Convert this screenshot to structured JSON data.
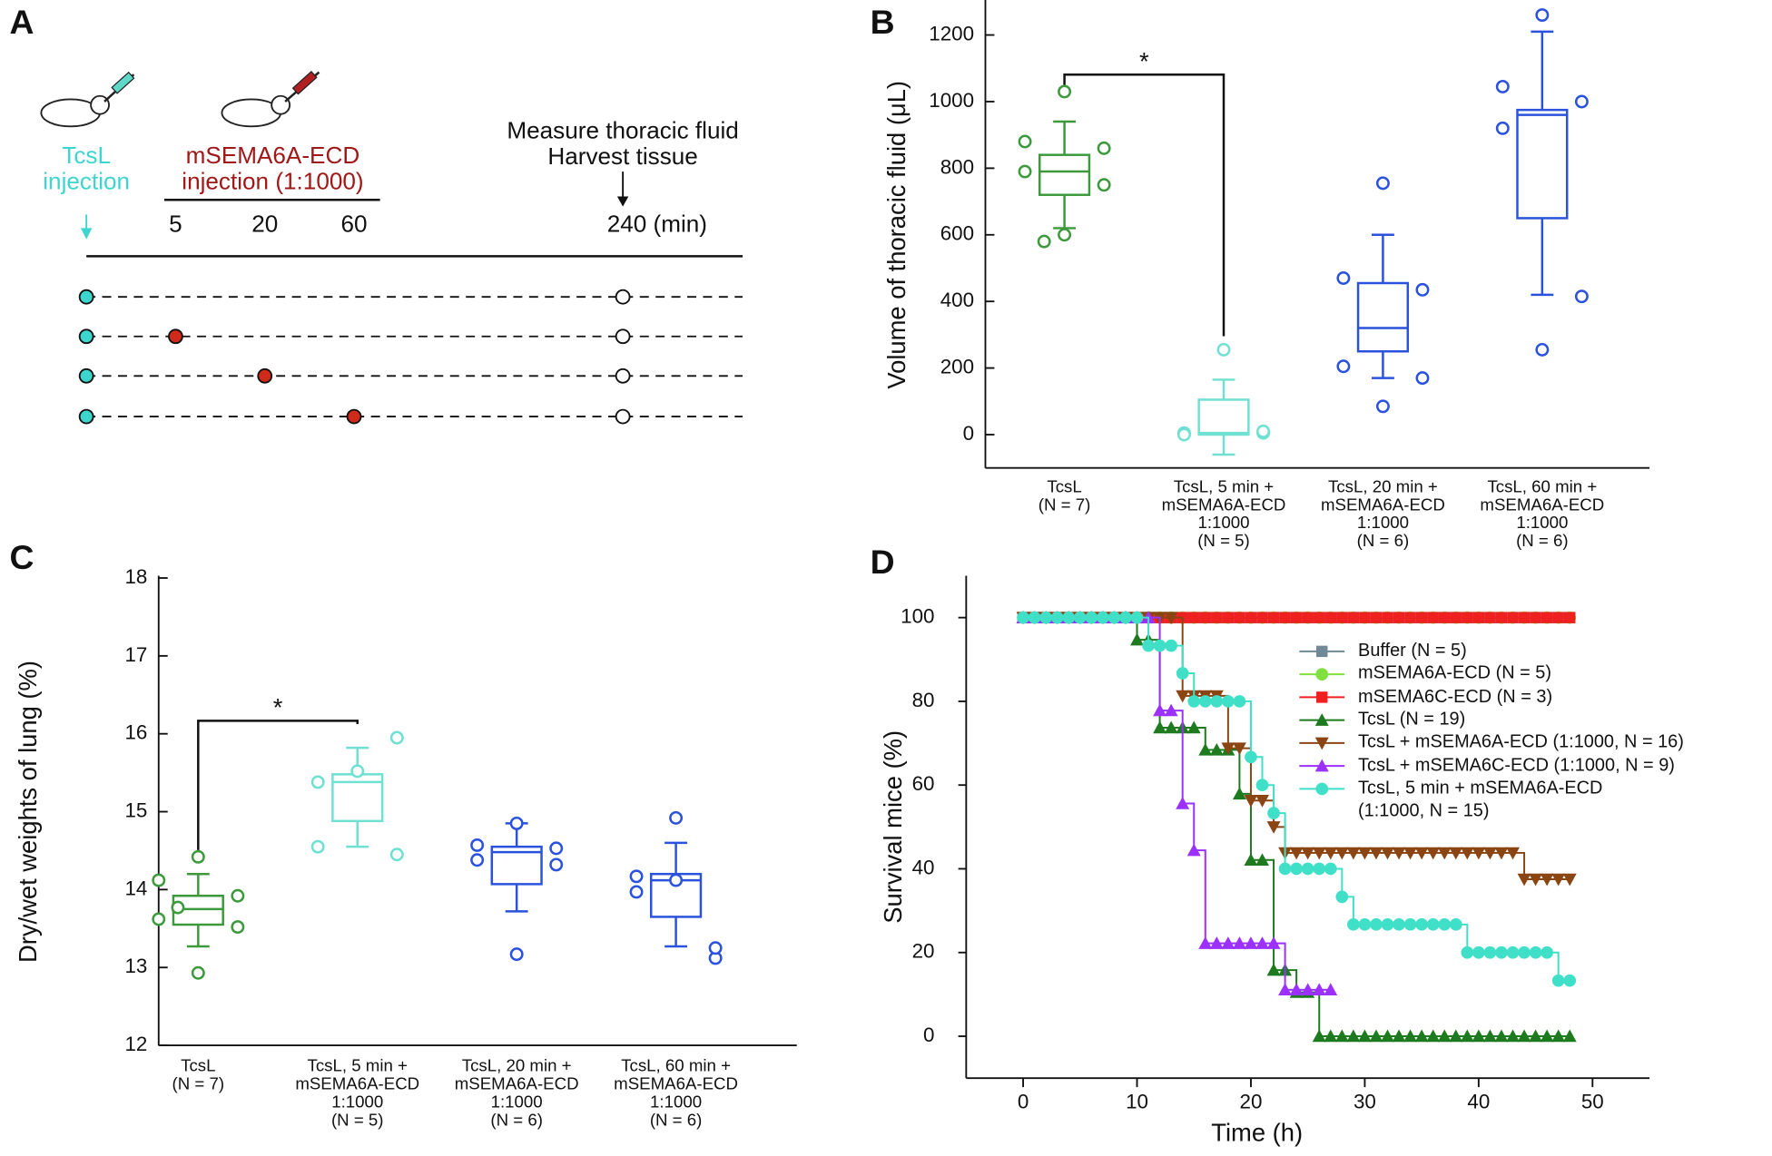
{
  "timeline": {
    "label": "A",
    "first_injection": [
      "TcsL",
      "injection"
    ],
    "second_injection": [
      "mSEMA6A-ECD",
      "injection (1:1000)"
    ],
    "endpoint": [
      "Measure thoracic fluid",
      "Harvest tissue"
    ],
    "ticks": [
      "5",
      "20",
      "60",
      "240 (min)"
    ]
  },
  "chart_data": [
    {
      "type": "box",
      "label": "B",
      "ylabel": "Volume of thoracic fluid (μL)",
      "ylim": [
        -100,
        1300
      ],
      "yticks": [
        0,
        200,
        400,
        600,
        800,
        1000,
        1200
      ],
      "categories": [
        [
          "TcsL",
          "(N = 7)"
        ],
        [
          "TcsL, 5 min +",
          "mSEMA6A-ECD",
          "1:1000",
          "(N = 5)"
        ],
        [
          "TcsL, 20 min +",
          "mSEMA6A-ECD",
          "1:1000",
          "(N = 6)"
        ],
        [
          "TcsL, 60 min +",
          "mSEMA6A-ECD",
          "1:1000",
          "(N = 6)"
        ]
      ],
      "colors": [
        "#3c9a3c",
        "#6fe0d2",
        "#2b52dc",
        "#2b52dc"
      ],
      "boxes": [
        {
          "whisker_low": 620,
          "q1": 720,
          "median": 790,
          "q3": 840,
          "whisker_high": 940,
          "points": [
            1030,
            880,
            860,
            790,
            750,
            600,
            580
          ]
        },
        {
          "whisker_low": -60,
          "q1": 0,
          "median": 5,
          "q3": 105,
          "whisker_high": 165,
          "points": [
            255,
            5,
            5,
            0,
            10
          ]
        },
        {
          "whisker_low": 170,
          "q1": 250,
          "median": 320,
          "q3": 455,
          "whisker_high": 600,
          "points": [
            755,
            470,
            435,
            205,
            170,
            85
          ]
        },
        {
          "whisker_low": 420,
          "q1": 650,
          "median": 960,
          "q3": 975,
          "whisker_high": 1210,
          "points": [
            1260,
            1045,
            1000,
            920,
            415,
            255
          ]
        }
      ],
      "significance": "*"
    },
    {
      "type": "box",
      "label": "C",
      "ylabel": "Dry/wet weights of lung (%)",
      "ylim": [
        12,
        18
      ],
      "yticks": [
        12,
        13,
        14,
        15,
        16,
        17,
        18
      ],
      "categories": [
        [
          "TcsL",
          "(N = 7)"
        ],
        [
          "TcsL, 5 min +",
          "mSEMA6A-ECD",
          "1:1000",
          "(N = 5)"
        ],
        [
          "TcsL, 20 min +",
          "mSEMA6A-ECD",
          "1:1000",
          "(N = 6)"
        ],
        [
          "TcsL, 60 min +",
          "mSEMA6A-ECD",
          "1:1000",
          "(N = 6)"
        ]
      ],
      "colors": [
        "#3c9a3c",
        "#6fe0d2",
        "#2b52dc",
        "#2b52dc"
      ],
      "boxes": [
        {
          "whisker_low": 13.27,
          "q1": 13.55,
          "median": 13.75,
          "q3": 13.92,
          "whisker_high": 14.2,
          "points": [
            14.42,
            13.62,
            13.52,
            14.12,
            13.92,
            12.93,
            13.77
          ]
        },
        {
          "whisker_low": 14.55,
          "q1": 14.88,
          "median": 15.38,
          "q3": 15.48,
          "whisker_high": 15.82,
          "points": [
            15.52,
            15.38,
            15.95,
            14.55,
            14.45
          ]
        },
        {
          "whisker_low": 13.72,
          "q1": 14.07,
          "median": 14.48,
          "q3": 14.55,
          "whisker_high": 14.85,
          "points": [
            14.85,
            14.57,
            14.53,
            14.38,
            14.32,
            13.17
          ]
        },
        {
          "whisker_low": 13.27,
          "q1": 13.65,
          "median": 14.12,
          "q3": 14.2,
          "whisker_high": 14.6,
          "points": [
            14.92,
            14.17,
            13.12,
            13.97,
            13.25,
            14.12
          ]
        }
      ],
      "significance": "*"
    },
    {
      "type": "step",
      "label": "D",
      "xlabel": "Time (h)",
      "ylabel": "Survival mice (%)",
      "xlim": [
        -5,
        55
      ],
      "ylim": [
        -10,
        110
      ],
      "xticks": [
        0,
        10,
        20,
        30,
        40,
        50
      ],
      "yticks": [
        0,
        20,
        40,
        60,
        80,
        100
      ],
      "x": [
        0,
        1,
        2,
        3,
        4,
        5,
        6,
        7,
        8,
        9,
        10,
        11,
        12,
        13,
        14,
        15,
        16,
        17,
        18,
        19,
        20,
        21,
        22,
        23,
        24,
        25,
        26,
        27,
        28,
        29,
        30,
        31,
        32,
        33,
        34,
        35,
        36,
        37,
        38,
        39,
        40,
        41,
        42,
        43,
        44,
        45,
        46,
        47,
        48
      ],
      "series": [
        {
          "name": "Buffer (N = 5)",
          "color": "#6f8a96",
          "marker": "square",
          "values": [
            100,
            100,
            100,
            100,
            100,
            100,
            100,
            100,
            100,
            100,
            100,
            100,
            100,
            100,
            100,
            100,
            100,
            100,
            100,
            100,
            100,
            100,
            100,
            100,
            100,
            100,
            100,
            100,
            100,
            100,
            100,
            100,
            100,
            100,
            100,
            100,
            100,
            100,
            100,
            100,
            100,
            100,
            100,
            100,
            100,
            100,
            100,
            100,
            100
          ]
        },
        {
          "name": "mSEMA6A-ECD (N = 5)",
          "color": "#80e040",
          "marker": "circle",
          "values": [
            100,
            100,
            100,
            100,
            100,
            100,
            100,
            100,
            100,
            100,
            100,
            100,
            100,
            100,
            100,
            100,
            100,
            100,
            100,
            100,
            100,
            100,
            100,
            100,
            100,
            100,
            100,
            100,
            100,
            100,
            100,
            100,
            100,
            100,
            100,
            100,
            100,
            100,
            100,
            100,
            100,
            100,
            100,
            100,
            100,
            100,
            100,
            100,
            100
          ]
        },
        {
          "name": "mSEMA6C-ECD  (N = 3)",
          "color": "#ee2020",
          "marker": "square",
          "values": [
            100,
            100,
            100,
            100,
            100,
            100,
            100,
            100,
            100,
            100,
            100,
            100,
            100,
            100,
            100,
            100,
            100,
            100,
            100,
            100,
            100,
            100,
            100,
            100,
            100,
            100,
            100,
            100,
            100,
            100,
            100,
            100,
            100,
            100,
            100,
            100,
            100,
            100,
            100,
            100,
            100,
            100,
            100,
            100,
            100,
            100,
            100,
            100,
            100
          ]
        },
        {
          "name": "TcsL (N = 19)",
          "color": "#1e7a1e",
          "marker": "tri-up",
          "values": [
            100,
            100,
            100,
            100,
            100,
            100,
            100,
            100,
            100,
            100,
            94.7,
            94.7,
            73.7,
            73.7,
            73.7,
            73.7,
            68.4,
            68.4,
            68.4,
            57.9,
            42.1,
            42.1,
            15.8,
            15.8,
            10.5,
            10.5,
            0,
            0,
            0,
            0,
            0,
            0,
            0,
            0,
            0,
            0,
            0,
            0,
            0,
            0,
            0,
            0,
            0,
            0,
            0,
            0,
            0,
            0,
            0
          ]
        },
        {
          "name": "TcsL + mSEMA6A-ECD (1:1000, N = 16)",
          "color": "#8b4513",
          "marker": "tri-down",
          "values": [
            100,
            100,
            100,
            100,
            100,
            100,
            100,
            100,
            100,
            100,
            100,
            100,
            100,
            100,
            81.3,
            81.3,
            81.3,
            81.3,
            68.8,
            68.8,
            56.3,
            56.3,
            50,
            43.8,
            43.8,
            43.8,
            43.8,
            43.8,
            43.8,
            43.8,
            43.8,
            43.8,
            43.8,
            43.8,
            43.8,
            43.8,
            43.8,
            43.8,
            43.8,
            43.8,
            43.8,
            43.8,
            43.8,
            43.8,
            37.5,
            37.5,
            37.5,
            37.5,
            37.5
          ]
        },
        {
          "name": "TcsL + mSEMA6C-ECD (1:1000, N = 9)",
          "color": "#9b30ff",
          "marker": "tri-up",
          "values": [
            100,
            100,
            100,
            100,
            100,
            100,
            100,
            100,
            100,
            100,
            100,
            100,
            77.8,
            77.8,
            55.6,
            44.4,
            22.2,
            22.2,
            22.2,
            22.2,
            22.2,
            22.2,
            22.2,
            11.1,
            11.1,
            11.1,
            11.1,
            11.1,
            null,
            null,
            null,
            null,
            null,
            null,
            null,
            null,
            null,
            null,
            null,
            null,
            null,
            null,
            null,
            null,
            null,
            null,
            null,
            null,
            null
          ]
        },
        {
          "name": "TcsL, 5 min + mSEMA6A-ECD\n(1:1000, N = 15)",
          "color": "#40e0c8",
          "marker": "circle",
          "values": [
            100,
            100,
            100,
            100,
            100,
            100,
            100,
            100,
            100,
            100,
            100,
            93.3,
            93.3,
            93.3,
            86.7,
            80,
            80,
            80,
            80,
            80,
            66.7,
            60,
            53.3,
            40,
            40,
            40,
            40,
            40,
            33.3,
            26.7,
            26.7,
            26.7,
            26.7,
            26.7,
            26.7,
            26.7,
            26.7,
            26.7,
            26.7,
            20,
            20,
            20,
            20,
            20,
            20,
            20,
            20,
            13.3,
            13.3
          ]
        }
      ]
    }
  ]
}
